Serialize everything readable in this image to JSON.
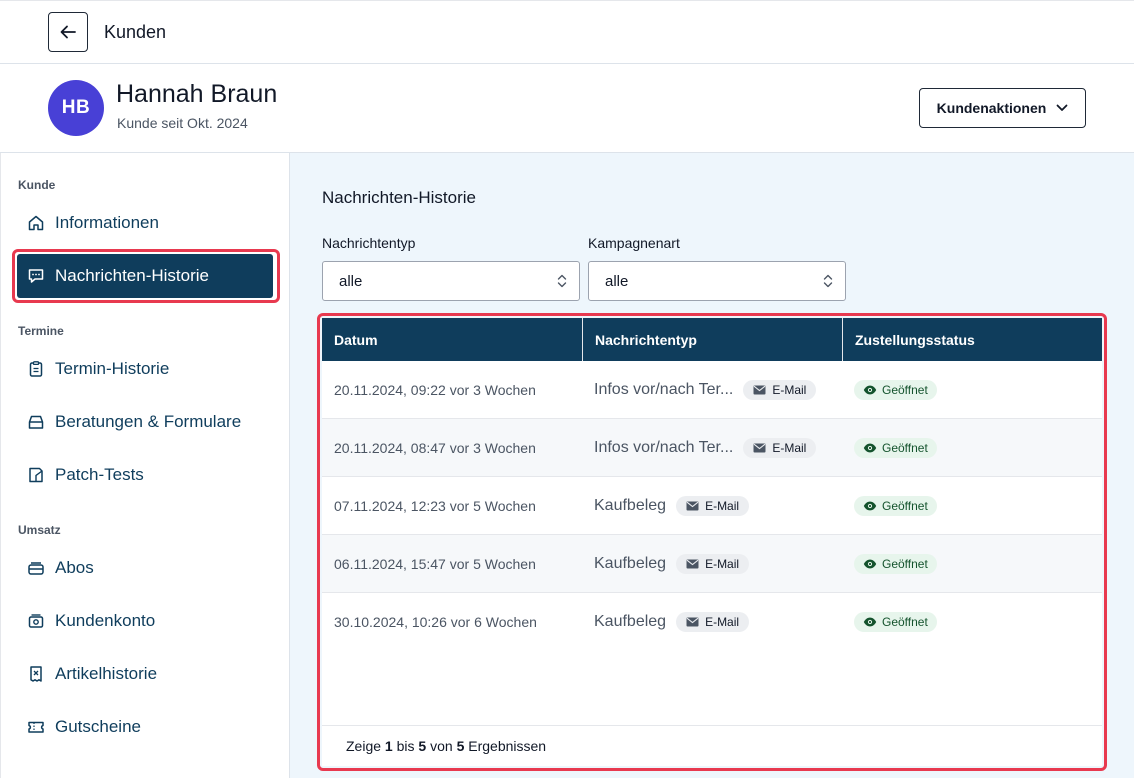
{
  "header": {
    "back_label": "back",
    "title": "Kunden"
  },
  "customer": {
    "initials": "HB",
    "name": "Hannah Braun",
    "since": "Kunde seit Okt. 2024",
    "avatar_color": "#4840d6",
    "actions_label": "Kundenaktionen"
  },
  "sidebar": {
    "sections": [
      "Kunde",
      "Termine",
      "Umsatz"
    ],
    "items": [
      {
        "label": "Informationen",
        "icon": "home-icon"
      },
      {
        "label": "Nachrichten-Historie",
        "icon": "chat-icon",
        "active": true
      },
      {
        "label": "Termin-Historie",
        "icon": "clipboard-icon"
      },
      {
        "label": "Beratungen & Formulare",
        "icon": "tray-icon"
      },
      {
        "label": "Patch-Tests",
        "icon": "patch-icon"
      },
      {
        "label": "Abos",
        "icon": "stack-icon"
      },
      {
        "label": "Kundenkonto",
        "icon": "wallet-icon"
      },
      {
        "label": "Artikelhistorie",
        "icon": "receipt-icon"
      },
      {
        "label": "Gutscheine",
        "icon": "ticket-icon"
      }
    ]
  },
  "main": {
    "title": "Nachrichten-Historie",
    "filters": [
      {
        "label": "Nachrichtentyp",
        "value": "alle"
      },
      {
        "label": "Kampagnenart",
        "value": "alle"
      }
    ],
    "table": {
      "columns": [
        "Datum",
        "Nachrichtentyp",
        "Zustellungsstatus"
      ],
      "rows": [
        {
          "date": "20.11.2024, 09:22 vor 3 Wochen",
          "type": "Infos vor/nach Ter...",
          "channel": "E-Mail",
          "status": "Geöffnet"
        },
        {
          "date": "20.11.2024, 08:47 vor 3 Wochen",
          "type": "Infos vor/nach Ter...",
          "channel": "E-Mail",
          "status": "Geöffnet"
        },
        {
          "date": "07.11.2024, 12:23 vor 5 Wochen",
          "type": "Kaufbeleg",
          "channel": "E-Mail",
          "status": "Geöffnet"
        },
        {
          "date": "06.11.2024, 15:47 vor 5 Wochen",
          "type": "Kaufbeleg",
          "channel": "E-Mail",
          "status": "Geöffnet"
        },
        {
          "date": "30.10.2024, 10:26 vor 6 Wochen",
          "type": "Kaufbeleg",
          "channel": "E-Mail",
          "status": "Geöffnet"
        }
      ],
      "footer": {
        "prefix": "Zeige",
        "from": "1",
        "mid1": "bis",
        "to": "5",
        "mid2": "von",
        "total": "5",
        "suffix": "Ergebnissen"
      }
    }
  },
  "colors": {
    "primary": "#0f3d5c",
    "highlight": "#e8394f",
    "status_green": "#14532d",
    "main_bg": "#eef6fc"
  }
}
